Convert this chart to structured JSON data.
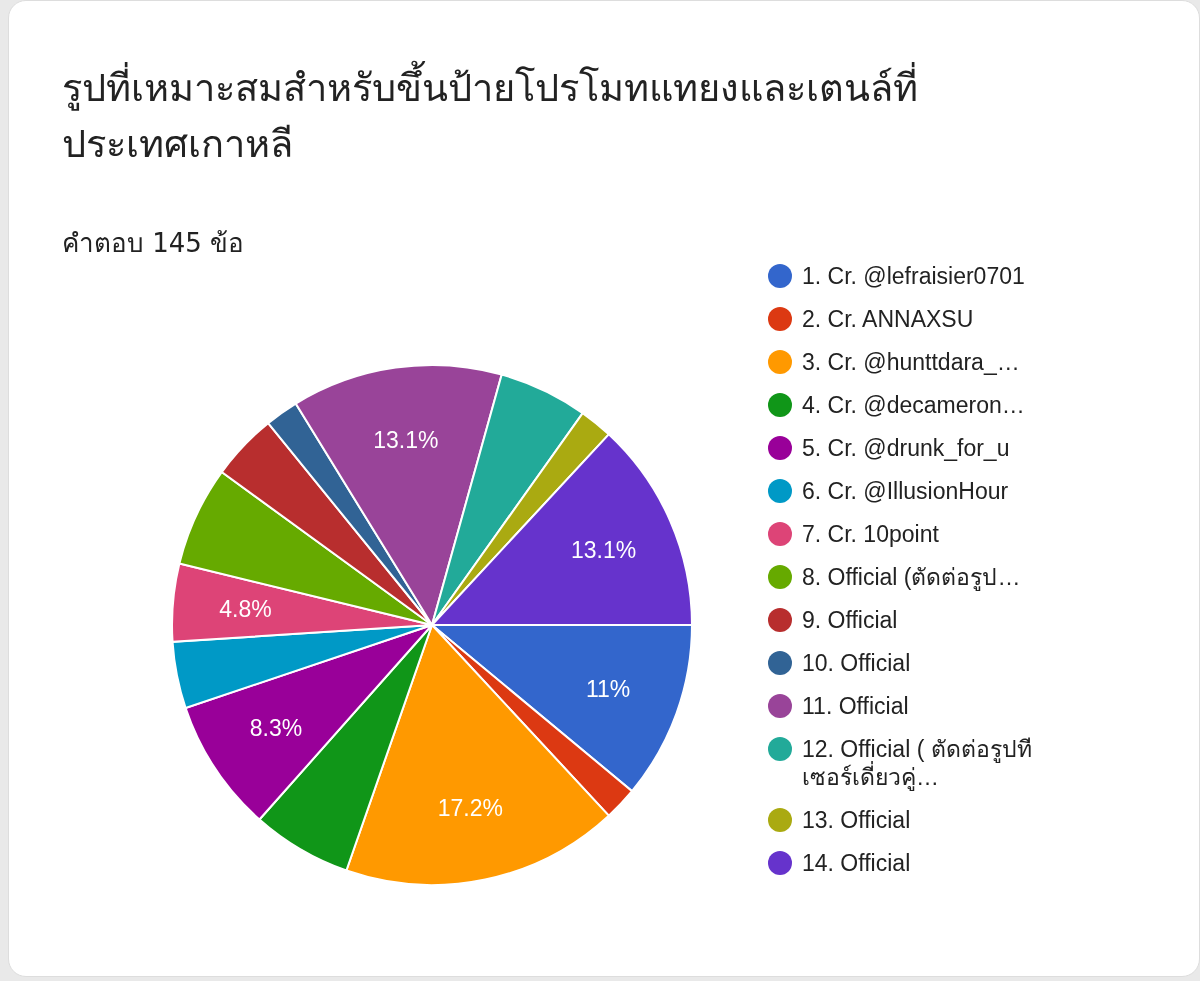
{
  "chart_data": {
    "type": "pie",
    "title": "รูปที่เหมาะสมสำหรับขึ้นป้ายโปรโมทแทยงและเตนล์ที่ประเทศเกาหลี",
    "subtitle": "คำตอบ 145 ข้อ",
    "legend": "right",
    "categories": [
      "1. Cr. @lefraisier0701",
      "2. Cr. ANNAXSU",
      "3. Cr. @hunttdara_…",
      "4. Cr. @decameron…",
      "5. Cr. @drunk_for_u",
      "6. Cr. @IllusionHour",
      "7. Cr. 10point",
      "8. Official (ตัดต่อรูป…",
      "9. Official",
      "10. Official",
      "11. Official",
      "12. Official ( ตัดต่อรูปทีเซอร์เดี่ยวคู่…",
      "13. Official",
      "14. Official"
    ],
    "values": [
      11.03,
      2.07,
      17.24,
      6.21,
      8.28,
      4.14,
      4.83,
      6.21,
      4.14,
      2.07,
      13.1,
      5.52,
      2.06,
      13.1
    ],
    "value_labels": [
      "11%",
      null,
      "17.2%",
      null,
      "8.3%",
      null,
      "4.8%",
      null,
      null,
      null,
      "13.1%",
      null,
      null,
      "13.1%"
    ],
    "colors": [
      "#3366cc",
      "#dc3912",
      "#ff9900",
      "#109618",
      "#990099",
      "#0099c6",
      "#dd4477",
      "#66aa00",
      "#b82e2e",
      "#316395",
      "#994499",
      "#22aa99",
      "#aaaa11",
      "#6633cc"
    ]
  }
}
